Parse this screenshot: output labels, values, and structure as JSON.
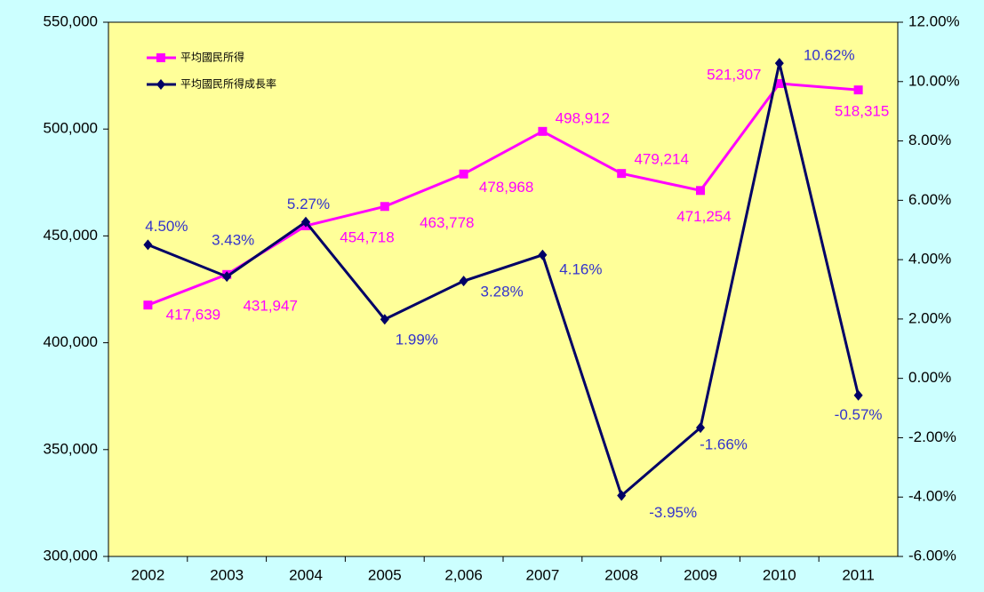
{
  "chart_data": {
    "type": "line",
    "categories": [
      "2002",
      "2003",
      "2004",
      "2005",
      "2,006",
      "2007",
      "2008",
      "2009",
      "2010",
      "2011"
    ],
    "series": [
      {
        "name": "平均國民所得",
        "color": "#ff00ff",
        "values": [
          417639,
          431947,
          454718,
          463778,
          478968,
          498912,
          479214,
          471254,
          521307,
          518315
        ],
        "value_labels": [
          "417,639",
          "431,947",
          "454,718",
          "463,778",
          "478,968",
          "498,912",
          "479,214",
          "471,254",
          "521,307",
          "518,315"
        ]
      },
      {
        "name": "平均國民所得成長率",
        "color": "#000066",
        "axis": "y2",
        "values": [
          4.5,
          3.43,
          5.27,
          1.99,
          3.28,
          4.16,
          -3.95,
          -1.66,
          10.62,
          -0.57
        ],
        "value_labels": [
          "4.50%",
          "3.43%",
          "5.27%",
          "1.99%",
          "3.28%",
          "4.16%",
          "-3.95%",
          "-1.66%",
          "10.62%",
          "-0.57%"
        ]
      }
    ],
    "ylim": [
      300000,
      550000
    ],
    "yticks": [
      {
        "value": 300000,
        "label": "300,000"
      },
      {
        "value": 350000,
        "label": "350,000"
      },
      {
        "value": 400000,
        "label": "400,000"
      },
      {
        "value": 450000,
        "label": "450,000"
      },
      {
        "value": 500000,
        "label": "500,000"
      },
      {
        "value": 550000,
        "label": "550,000"
      }
    ],
    "y2lim": [
      -6,
      12
    ],
    "y2ticks": [
      {
        "value": -6,
        "label": "-6.00%"
      },
      {
        "value": -4,
        "label": "-4.00%"
      },
      {
        "value": -2,
        "label": "-2.00%"
      },
      {
        "value": 0,
        "label": "0.00%"
      },
      {
        "value": 2,
        "label": "2.00%"
      },
      {
        "value": 4,
        "label": "4.00%"
      },
      {
        "value": 6,
        "label": "6.00%"
      },
      {
        "value": 8,
        "label": "8.00%"
      },
      {
        "value": 10,
        "label": "10.00%"
      },
      {
        "value": 12,
        "label": "12.00%"
      }
    ],
    "legend": "upper left"
  }
}
